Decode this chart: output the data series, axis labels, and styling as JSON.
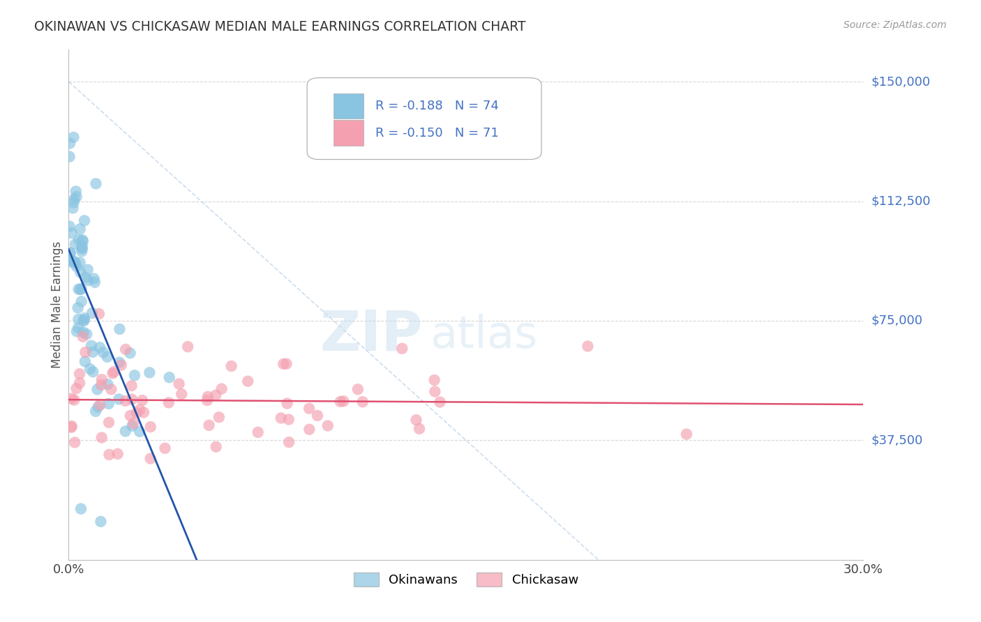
{
  "title": "OKINAWAN VS CHICKASAW MEDIAN MALE EARNINGS CORRELATION CHART",
  "source": "Source: ZipAtlas.com",
  "ylabel": "Median Male Earnings",
  "xmin": 0.0,
  "xmax": 0.3,
  "ymin": 0,
  "ymax": 160000,
  "blue_color": "#89c4e1",
  "blue_line_color": "#2255aa",
  "pink_color": "#f4a0b0",
  "pink_line_color": "#e05070",
  "legend_text_color": "#4472C4",
  "legend_blue_label": "R = -0.188   N = 74",
  "legend_pink_label": "R = -0.150   N = 71",
  "legend_blue_short": "Okinawans",
  "legend_pink_short": "Chickasaw",
  "watermark_zip": "ZIP",
  "watermark_atlas": "atlas",
  "background_color": "#ffffff",
  "grid_color": "#cccccc",
  "ytick_vals": [
    37500,
    75000,
    112500,
    150000
  ],
  "ytick_labels": [
    "$37,500",
    "$75,000",
    "$112,500",
    "$150,000"
  ]
}
